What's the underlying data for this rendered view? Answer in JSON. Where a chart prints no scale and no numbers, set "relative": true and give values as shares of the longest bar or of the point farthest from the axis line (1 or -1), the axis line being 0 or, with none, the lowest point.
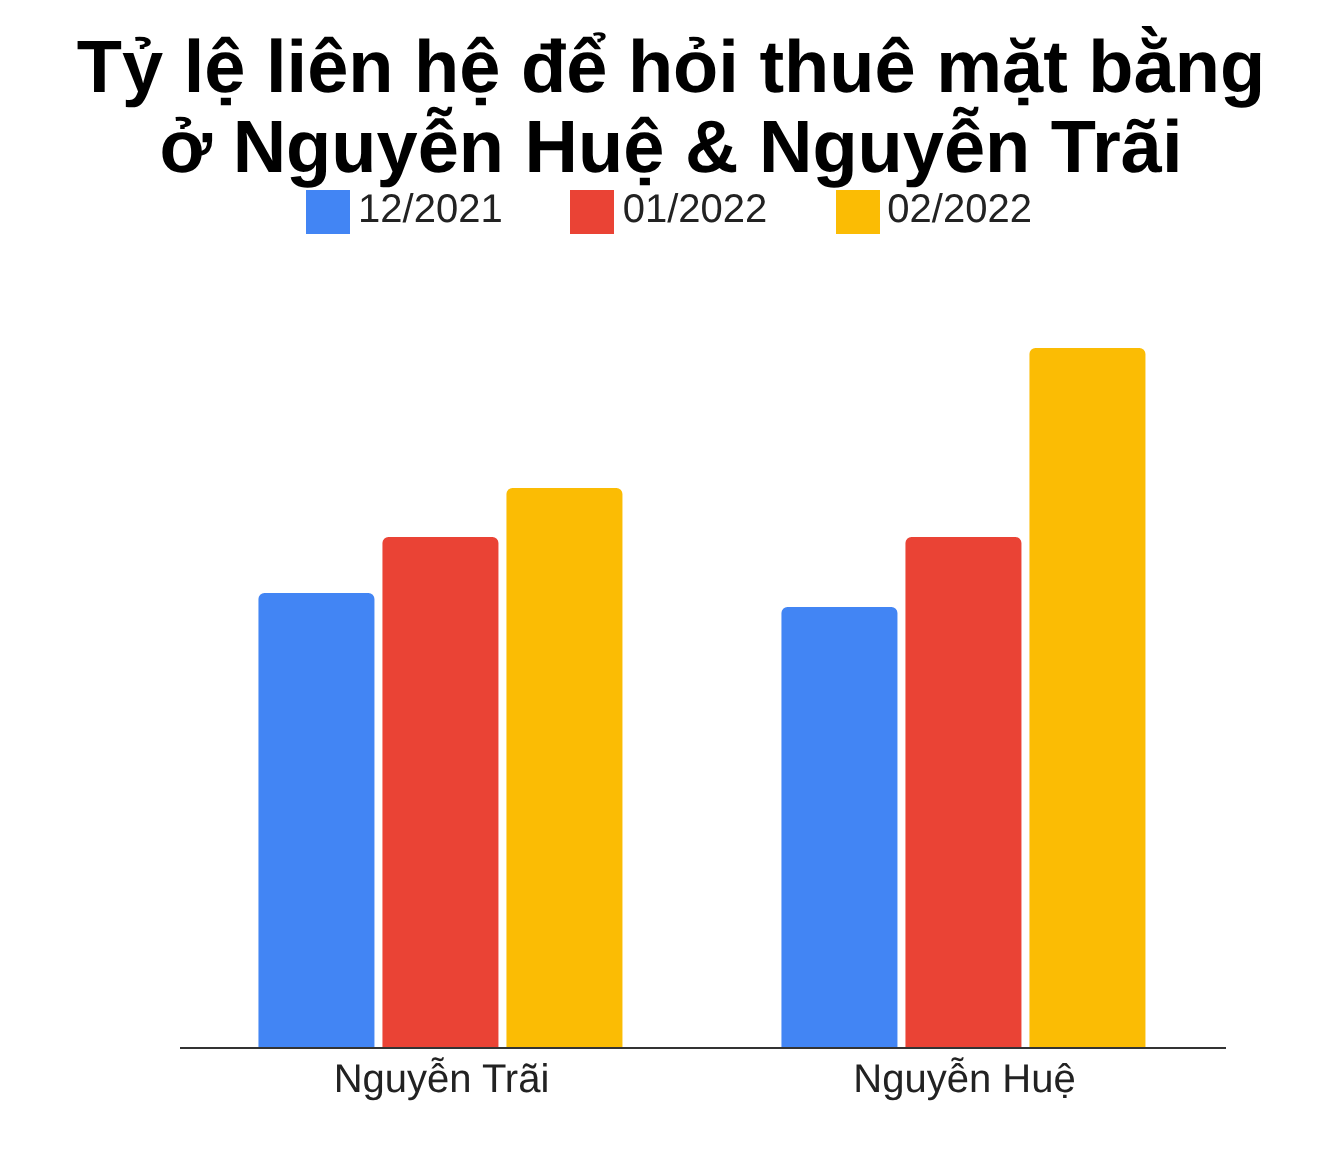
{
  "chart_data": {
    "type": "bar",
    "title": "Tỷ lệ liên hệ để hỏi thuê mặt bằng\nở Nguyễn Huệ & Nguyễn Trãi",
    "categories": [
      "Nguyễn Trãi",
      "Nguyễn Huệ"
    ],
    "relative": true,
    "legend": "top",
    "grid": false,
    "series": [
      {
        "name": "12/2021",
        "color": "#4285f4",
        "values": [
          0.65,
          0.63
        ]
      },
      {
        "name": "01/2022",
        "color": "#ea4335",
        "values": [
          0.73,
          0.73
        ]
      },
      {
        "name": "02/2022",
        "color": "#fbbc04",
        "values": [
          0.8,
          1
        ]
      }
    ]
  }
}
